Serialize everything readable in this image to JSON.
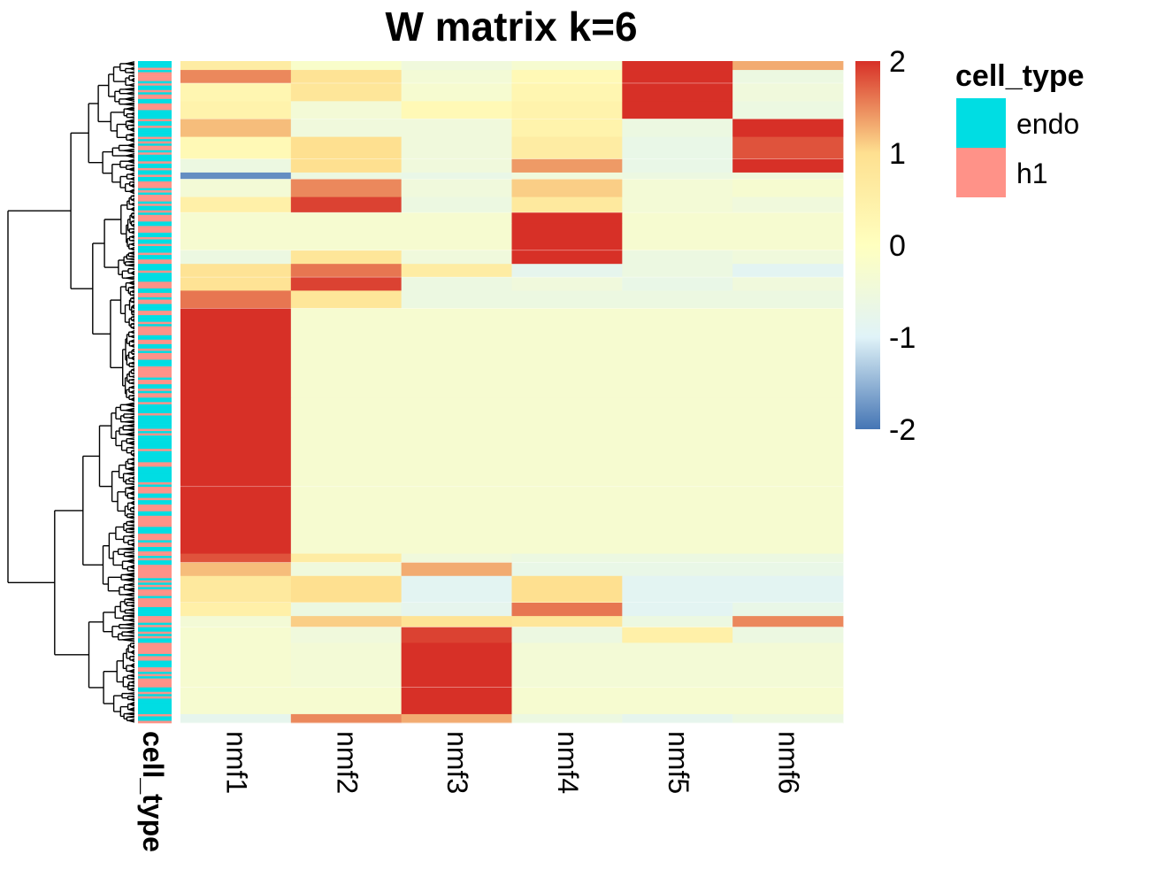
{
  "chart_data": {
    "type": "heatmap",
    "title": "W matrix k=6",
    "columns": [
      "nmf1",
      "nmf2",
      "nmf3",
      "nmf4",
      "nmf5",
      "nmf6"
    ],
    "annotation": {
      "name": "cell_type",
      "title": "cell_type",
      "levels": [
        {
          "label": "endo",
          "color": "#00dde3"
        },
        {
          "label": "h1",
          "color": "#ff9288"
        }
      ]
    },
    "colorbar": {
      "min": -2,
      "max": 2,
      "tick_values": [
        2,
        1,
        0,
        -1,
        -2
      ],
      "tick_labels": [
        "2",
        "1",
        "0",
        "-1",
        "-2"
      ],
      "colors": [
        "#4575b4",
        "#e0f3f8",
        "#ffffbf",
        "#fee090",
        "#d73027"
      ]
    },
    "row_blocks": [
      {
        "rows": 4,
        "values": [
          0.6,
          -0.2,
          -0.5,
          -0.3,
          2.0,
          1.3
        ],
        "celltype": "endo"
      },
      {
        "rows": 6,
        "values": [
          1.5,
          0.9,
          -0.4,
          0.2,
          2.0,
          -0.6
        ],
        "celltype": "h1"
      },
      {
        "rows": 8,
        "values": [
          0.3,
          0.8,
          -0.3,
          0.3,
          2.0,
          -0.5
        ],
        "celltype": "h1"
      },
      {
        "rows": 8,
        "values": [
          0.4,
          -0.4,
          0.2,
          0.4,
          2.0,
          -0.6
        ],
        "celltype": "endo"
      },
      {
        "rows": 8,
        "values": [
          1.2,
          -0.5,
          -0.5,
          0.4,
          -0.6,
          2.0
        ],
        "celltype": "endo"
      },
      {
        "rows": 10,
        "values": [
          0.2,
          1.0,
          -0.5,
          0.6,
          -0.7,
          1.8
        ],
        "celltype": "h1"
      },
      {
        "rows": 6,
        "values": [
          -0.6,
          1.0,
          -0.5,
          1.4,
          -0.7,
          2.0
        ],
        "celltype": "h1"
      },
      {
        "rows": 3,
        "values": [
          -1.8,
          -0.6,
          -0.7,
          -0.5,
          -0.6,
          -0.5
        ],
        "celltype": "endo"
      },
      {
        "rows": 8,
        "values": [
          -0.4,
          1.5,
          -0.5,
          1.1,
          -0.4,
          -0.3
        ],
        "celltype": "h1"
      },
      {
        "rows": 7,
        "values": [
          0.5,
          1.9,
          -0.6,
          0.7,
          -0.4,
          -0.5
        ],
        "celltype": "endo"
      },
      {
        "rows": 5,
        "values": [
          -0.3,
          -0.3,
          -0.3,
          2.0,
          -0.3,
          -0.3
        ],
        "celltype": "h1"
      },
      {
        "rows": 12,
        "values": [
          -0.3,
          -0.3,
          -0.3,
          2.0,
          -0.3,
          -0.3
        ],
        "celltype": "h1"
      },
      {
        "rows": 6,
        "values": [
          -0.6,
          0.8,
          -0.5,
          2.0,
          -0.6,
          -0.5
        ],
        "celltype": "h1"
      },
      {
        "rows": 6,
        "values": [
          0.9,
          1.6,
          0.6,
          -0.8,
          -0.6,
          -0.9
        ],
        "celltype": "endo"
      },
      {
        "rows": 6,
        "values": [
          0.9,
          1.9,
          -0.6,
          -0.5,
          -0.7,
          -0.5
        ],
        "celltype": "h1"
      },
      {
        "rows": 8,
        "values": [
          1.6,
          0.8,
          -0.6,
          -0.6,
          -0.6,
          -0.6
        ],
        "celltype": "endo"
      },
      {
        "rows": 40,
        "values": [
          2.0,
          -0.3,
          -0.3,
          -0.3,
          -0.3,
          -0.3
        ],
        "celltype": "h1"
      },
      {
        "rows": 40,
        "values": [
          2.0,
          -0.3,
          -0.3,
          -0.3,
          -0.3,
          -0.3
        ],
        "celltype": "endo"
      },
      {
        "rows": 30,
        "values": [
          2.0,
          -0.3,
          -0.3,
          -0.3,
          -0.3,
          -0.3
        ],
        "celltype": "h1"
      },
      {
        "rows": 4,
        "values": [
          1.8,
          0.6,
          -0.5,
          -0.6,
          -0.6,
          -0.6
        ],
        "celltype": "h1"
      },
      {
        "rows": 6,
        "values": [
          1.2,
          -0.5,
          1.3,
          -0.7,
          -0.7,
          -0.7
        ],
        "celltype": "endo"
      },
      {
        "rows": 12,
        "values": [
          0.7,
          1.0,
          -0.9,
          1.0,
          -0.9,
          -0.9
        ],
        "celltype": "h1"
      },
      {
        "rows": 6,
        "values": [
          0.5,
          -0.6,
          -0.8,
          1.6,
          -0.9,
          -0.7
        ],
        "celltype": "endo"
      },
      {
        "rows": 5,
        "values": [
          -0.4,
          1.1,
          0.9,
          0.8,
          -0.6,
          1.5
        ],
        "celltype": "h1"
      },
      {
        "rows": 7,
        "values": [
          -0.3,
          -0.5,
          1.9,
          -0.6,
          0.5,
          -0.6
        ],
        "celltype": "endo"
      },
      {
        "rows": 20,
        "values": [
          -0.3,
          -0.4,
          2.0,
          -0.4,
          -0.4,
          -0.4
        ],
        "celltype": "h1"
      },
      {
        "rows": 12,
        "values": [
          -0.3,
          -0.3,
          2.0,
          -0.3,
          -0.3,
          -0.3
        ],
        "celltype": "endo"
      },
      {
        "rows": 4,
        "values": [
          -0.8,
          1.5,
          1.3,
          -0.6,
          -0.8,
          -0.6
        ],
        "celltype": "h1"
      }
    ]
  }
}
